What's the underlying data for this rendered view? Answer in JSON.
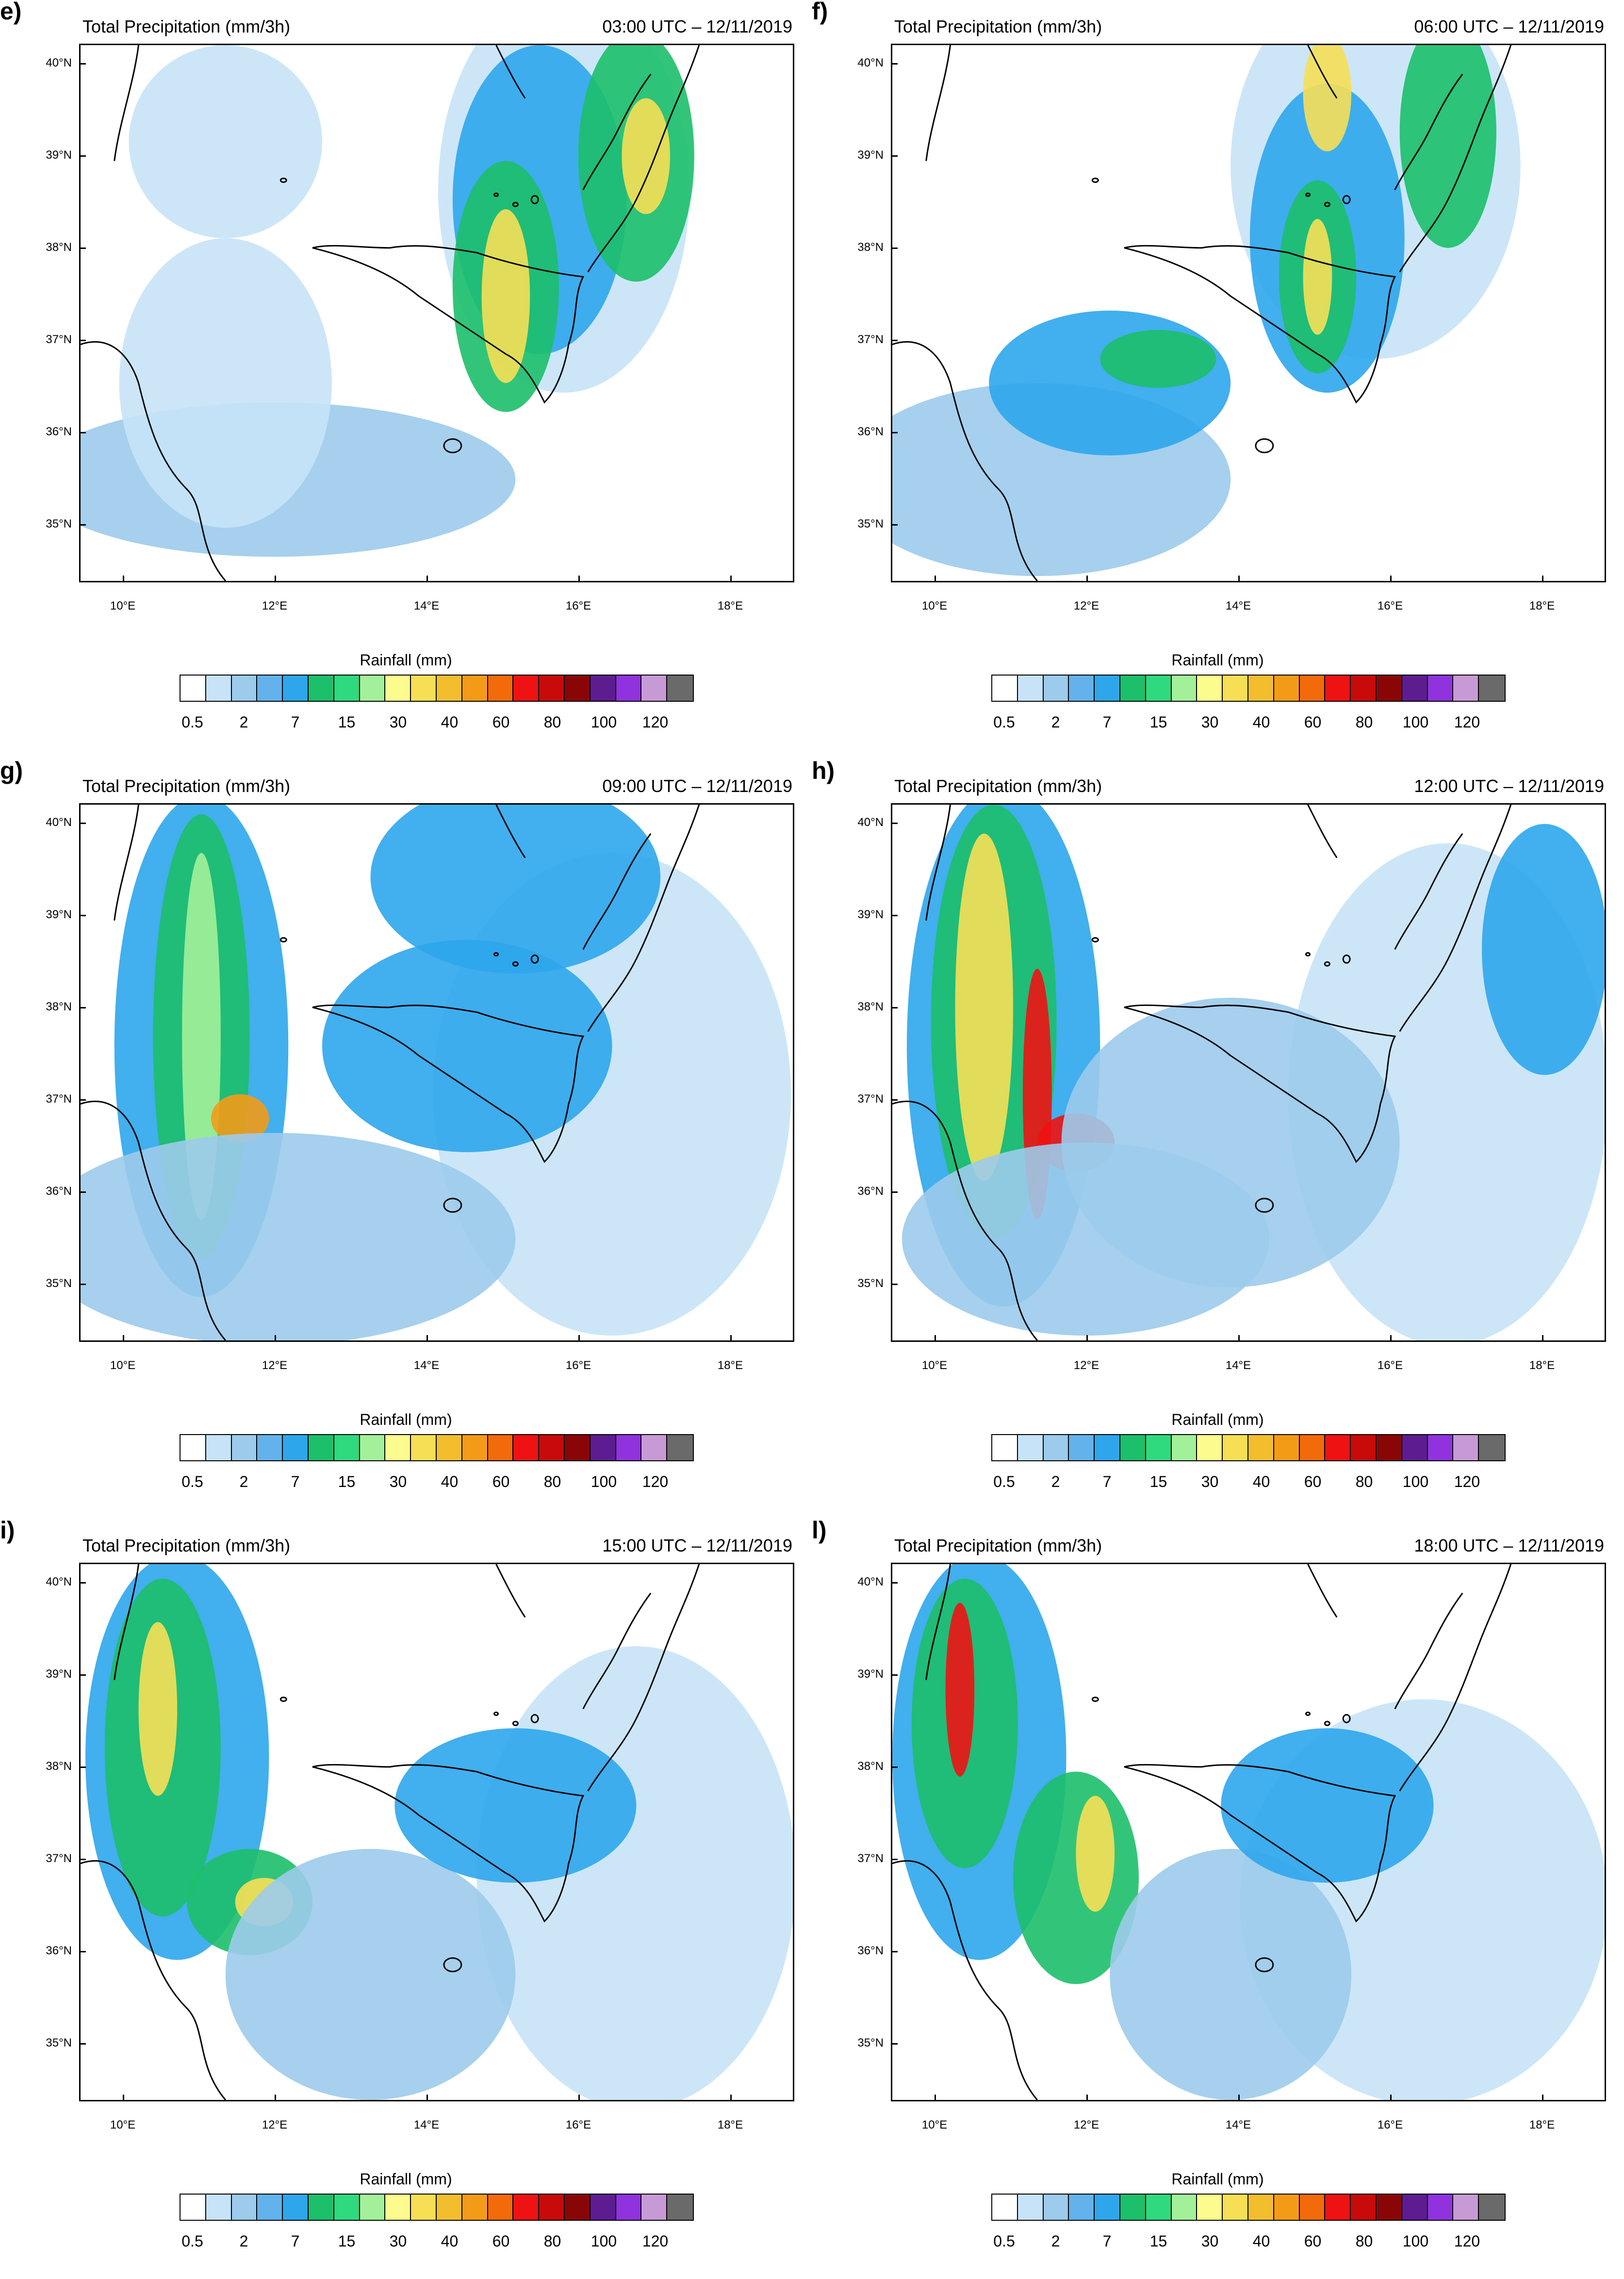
{
  "panels": [
    {
      "letter": "e)",
      "title": "Total Precipitation (mm/3h)",
      "time": "03:00 UTC – 12/11/2019"
    },
    {
      "letter": "f)",
      "title": "Total Precipitation (mm/3h)",
      "time": "06:00 UTC – 12/11/2019"
    },
    {
      "letter": "g)",
      "title": "Total Precipitation (mm/3h)",
      "time": "09:00 UTC – 12/11/2019"
    },
    {
      "letter": "h)",
      "title": "Total Precipitation (mm/3h)",
      "time": "12:00 UTC – 12/11/2019"
    },
    {
      "letter": "i)",
      "title": "Total Precipitation (mm/3h)",
      "time": "15:00 UTC – 12/11/2019"
    },
    {
      "letter": "l)",
      "title": "Total Precipitation (mm/3h)",
      "time": "18:00 UTC – 12/11/2019"
    }
  ],
  "lat_labels": [
    "40°N",
    "39°N",
    "38°N",
    "37°N",
    "36°N",
    "35°N"
  ],
  "lon_labels": [
    "10°E",
    "12°E",
    "14°E",
    "16°E",
    "18°E"
  ],
  "colorbar": {
    "title": "Rainfall  (mm)",
    "labels": [
      "0.5",
      "2",
      "7",
      "15",
      "30",
      "40",
      "60",
      "80",
      "100",
      "120"
    ],
    "colors": [
      "#ffffff",
      "#c6e3f7",
      "#9ccbeb",
      "#63b2ec",
      "#2ea6ec",
      "#1cbf6a",
      "#2fd97e",
      "#a3f09a",
      "#fbfb8e",
      "#f6df55",
      "#f3be2d",
      "#f39b16",
      "#f36a0a",
      "#ee1212",
      "#c90a0a",
      "#8a0606",
      "#5e1c91",
      "#9033de",
      "#c79ad6",
      "#6a6a6a"
    ]
  },
  "map_palette": {
    "sea_light": "#c6e3f7",
    "sea_mid": "#9ccbeb",
    "blue": "#2ea6ec",
    "green": "#1cbf6a",
    "lightgreen": "#a3f09a",
    "yellow": "#f6df55",
    "orange": "#f39b16",
    "red": "#ee1212"
  }
}
